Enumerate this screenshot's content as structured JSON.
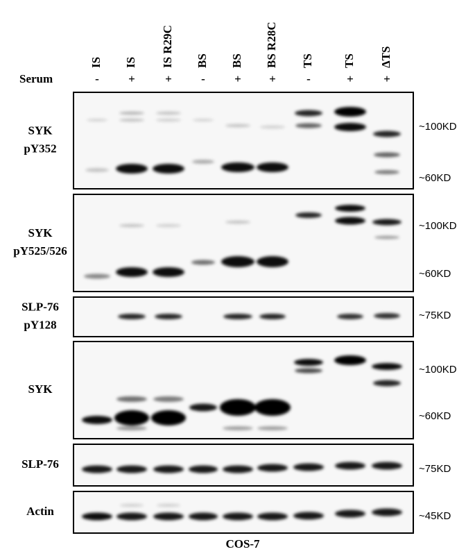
{
  "lanes": [
    {
      "label": "IS",
      "serum": "-"
    },
    {
      "label": "IS",
      "serum": "+"
    },
    {
      "label": "IS R29C",
      "serum": "+"
    },
    {
      "label": "BS",
      "serum": "-"
    },
    {
      "label": "BS",
      "serum": "+"
    },
    {
      "label": "BS R28C",
      "serum": "+"
    },
    {
      "label": "TS",
      "serum": "-"
    },
    {
      "label": "TS",
      "serum": "+"
    },
    {
      "label": "ΔTS",
      "serum": "+"
    }
  ],
  "serum_label": "Serum",
  "panels": [
    {
      "label": [
        "SYK",
        "pY352"
      ],
      "markers": [
        "~100KD",
        "~60KD"
      ]
    },
    {
      "label": [
        "SYK",
        "pY525/526"
      ],
      "markers": [
        "~100KD",
        "~60KD"
      ]
    },
    {
      "label": [
        "SLP-76",
        "pY128"
      ],
      "markers": [
        "~75KD"
      ]
    },
    {
      "label": [
        "SYK"
      ],
      "markers": [
        "~100KD",
        "~60KD"
      ]
    },
    {
      "label": [
        "SLP-76"
      ],
      "markers": [
        "~75KD"
      ]
    },
    {
      "label": [
        "Actin"
      ],
      "markers": [
        "~45KD"
      ]
    }
  ],
  "cell_line": "COS-7"
}
